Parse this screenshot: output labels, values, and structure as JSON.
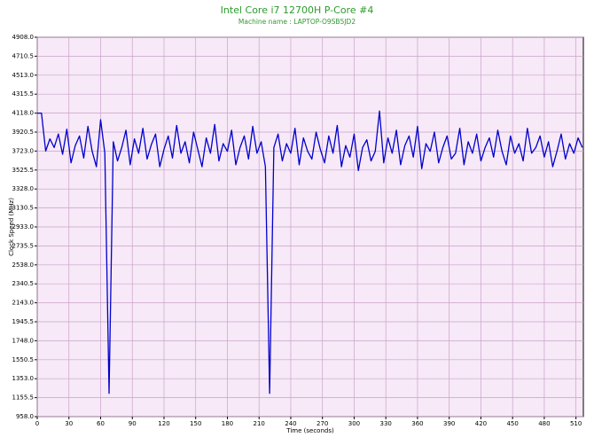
{
  "chart_data": {
    "type": "line",
    "title": "Intel Core i7 12700H P-Core #4",
    "subtitle": "Machine name : LAPTOP-O9SB5JD2",
    "x_label": "Time (seconds)",
    "y_label": "Clock Speed (MHz)",
    "xlim": [
      0,
      517
    ],
    "xticks": [
      0,
      30,
      60,
      90,
      120,
      150,
      180,
      210,
      240,
      270,
      300,
      330,
      360,
      390,
      420,
      450,
      480,
      510
    ],
    "ylim": [
      958,
      4908
    ],
    "yticks": [
      {
        "value": 958,
        "label": "958.0"
      },
      {
        "value": 1155.5,
        "label": "1155.5"
      },
      {
        "value": 1353,
        "label": "1353.0"
      },
      {
        "value": 1550.5,
        "label": "1550.5"
      },
      {
        "value": 1748,
        "label": "1748.0"
      },
      {
        "value": 1945.5,
        "label": "1945.5"
      },
      {
        "value": 2143,
        "label": "2143.0"
      },
      {
        "value": 2340.5,
        "label": "2340.5"
      },
      {
        "value": 2538,
        "label": "2538.0"
      },
      {
        "value": 2735.5,
        "label": "2735.5"
      },
      {
        "value": 2933,
        "label": "2933.0"
      },
      {
        "value": 3130.5,
        "label": "3130.5"
      },
      {
        "value": 3328,
        "label": "3328.0"
      },
      {
        "value": 3525.5,
        "label": "3525.5"
      },
      {
        "value": 3723,
        "label": "3723.0"
      },
      {
        "value": 3920.5,
        "label": "3920.5"
      },
      {
        "value": 4118,
        "label": "4118.0"
      },
      {
        "value": 4315.5,
        "label": "4315.5"
      },
      {
        "value": 4513,
        "label": "4513.0"
      },
      {
        "value": 4710.5,
        "label": "4710.5"
      },
      {
        "value": 4908,
        "label": "4908.0"
      }
    ],
    "grid": true,
    "background": "#f7e9f7",
    "x": [
      0,
      4,
      8,
      12,
      16,
      20,
      24,
      28,
      32,
      36,
      40,
      44,
      48,
      52,
      56,
      60,
      64,
      68,
      72,
      76,
      80,
      84,
      88,
      92,
      96,
      100,
      104,
      108,
      112,
      116,
      120,
      124,
      128,
      132,
      136,
      140,
      144,
      148,
      152,
      156,
      160,
      164,
      168,
      172,
      176,
      180,
      184,
      188,
      192,
      196,
      200,
      204,
      208,
      212,
      216,
      220,
      224,
      228,
      232,
      236,
      240,
      244,
      248,
      252,
      256,
      260,
      264,
      268,
      272,
      276,
      280,
      284,
      288,
      292,
      296,
      300,
      304,
      308,
      312,
      316,
      320,
      324,
      328,
      332,
      336,
      340,
      344,
      348,
      352,
      356,
      360,
      364,
      368,
      372,
      376,
      380,
      384,
      388,
      392,
      396,
      400,
      404,
      408,
      412,
      416,
      420,
      424,
      428,
      432,
      436,
      440,
      444,
      448,
      452,
      456,
      460,
      464,
      468,
      472,
      476,
      480,
      484,
      488,
      492,
      496,
      500,
      504,
      508,
      512,
      516
    ],
    "series": [
      {
        "name": "P-Core #4",
        "color": "#0000cc",
        "values": [
          4118,
          4118,
          3723,
          3850,
          3760,
          3900,
          3690,
          3950,
          3600,
          3780,
          3880,
          3650,
          3980,
          3720,
          3560,
          4050,
          3700,
          1200,
          3820,
          3620,
          3760,
          3940,
          3580,
          3850,
          3700,
          3960,
          3640,
          3790,
          3900,
          3560,
          3740,
          3880,
          3650,
          3990,
          3700,
          3820,
          3600,
          3920,
          3740,
          3560,
          3860,
          3700,
          4000,
          3620,
          3800,
          3720,
          3940,
          3580,
          3760,
          3880,
          3640,
          3980,
          3700,
          3820,
          3560,
          1200,
          3760,
          3900,
          3620,
          3800,
          3700,
          3960,
          3580,
          3860,
          3720,
          3640,
          3920,
          3740,
          3600,
          3880,
          3700,
          3990,
          3560,
          3780,
          3660,
          3900,
          3520,
          3760,
          3840,
          3620,
          3720,
          4140,
          3600,
          3860,
          3700,
          3940,
          3580,
          3780,
          3880,
          3660,
          3980,
          3540,
          3800,
          3720,
          3920,
          3600,
          3760,
          3880,
          3640,
          3700,
          3960,
          3580,
          3820,
          3700,
          3900,
          3620,
          3760,
          3860,
          3660,
          3940,
          3720,
          3580,
          3880,
          3700,
          3800,
          3620,
          3960,
          3700,
          3760,
          3880,
          3660,
          3820,
          3560,
          3720,
          3900,
          3640,
          3800,
          3700,
          3860,
          3760
        ]
      }
    ]
  }
}
